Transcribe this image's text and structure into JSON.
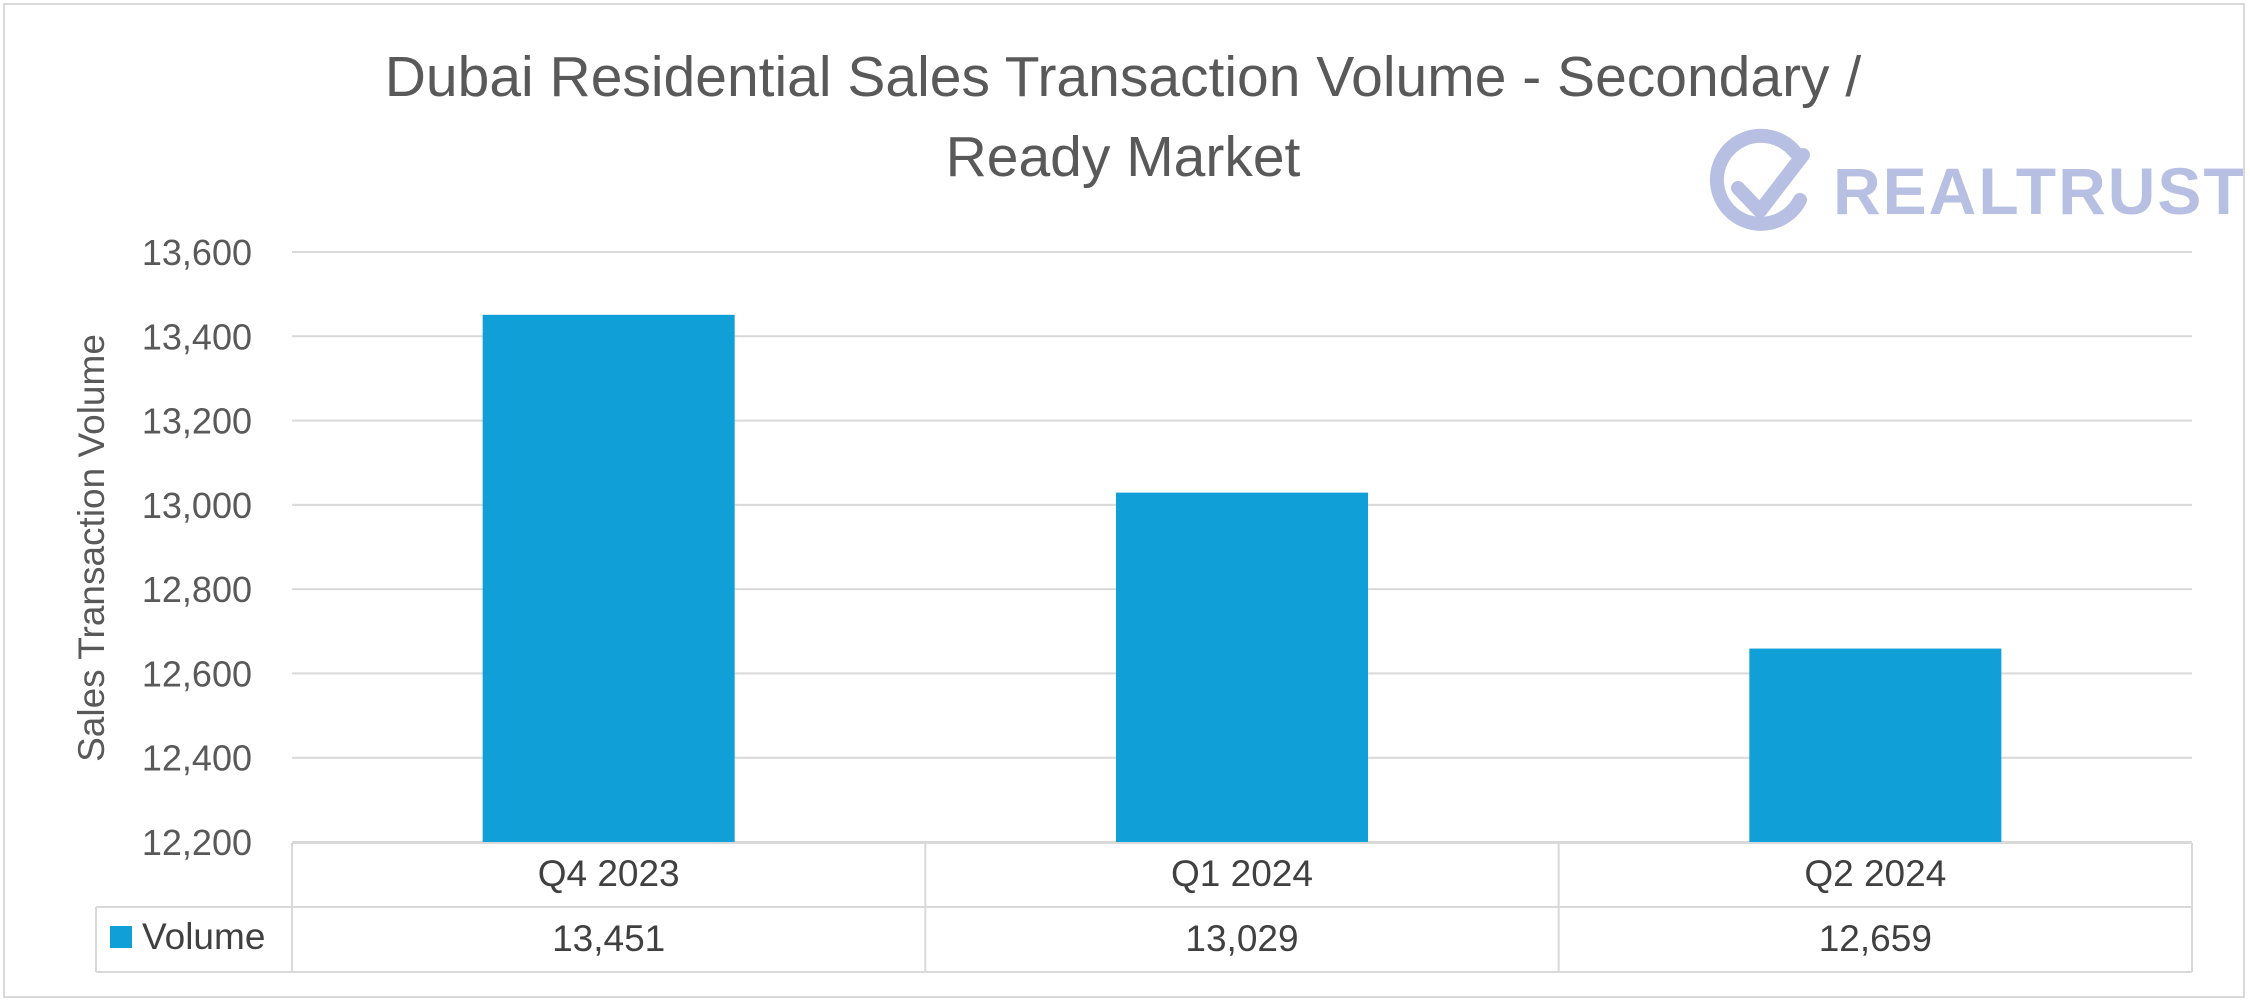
{
  "chart_data": {
    "type": "bar",
    "title_line1": "Dubai Residential Sales Transaction Volume - Secondary /",
    "title_line2": "Ready Market",
    "ylabel": "Sales Transaction Volume",
    "xlabel": "",
    "categories": [
      "Q4 2023",
      "Q1 2024",
      "Q2 2024"
    ],
    "series": [
      {
        "name": "Volume",
        "values": [
          13451,
          13029,
          12659
        ],
        "labels": [
          "13,451",
          "13,029",
          "12,659"
        ]
      }
    ],
    "ylim": [
      12200,
      13600
    ],
    "yticks": [
      13600,
      13400,
      13200,
      13000,
      12800,
      12600,
      12400,
      12200
    ],
    "ytick_labels": [
      "13,600",
      "13,400",
      "13,200",
      "13,000",
      "12,800",
      "12,600",
      "12,400",
      "12,200"
    ],
    "grid": true,
    "legend": "data-table",
    "bar_color": "#119fd8"
  },
  "logo": {
    "text": "REALTRUST",
    "color": "#b7c0e3",
    "icon": "check-circle-icon"
  }
}
